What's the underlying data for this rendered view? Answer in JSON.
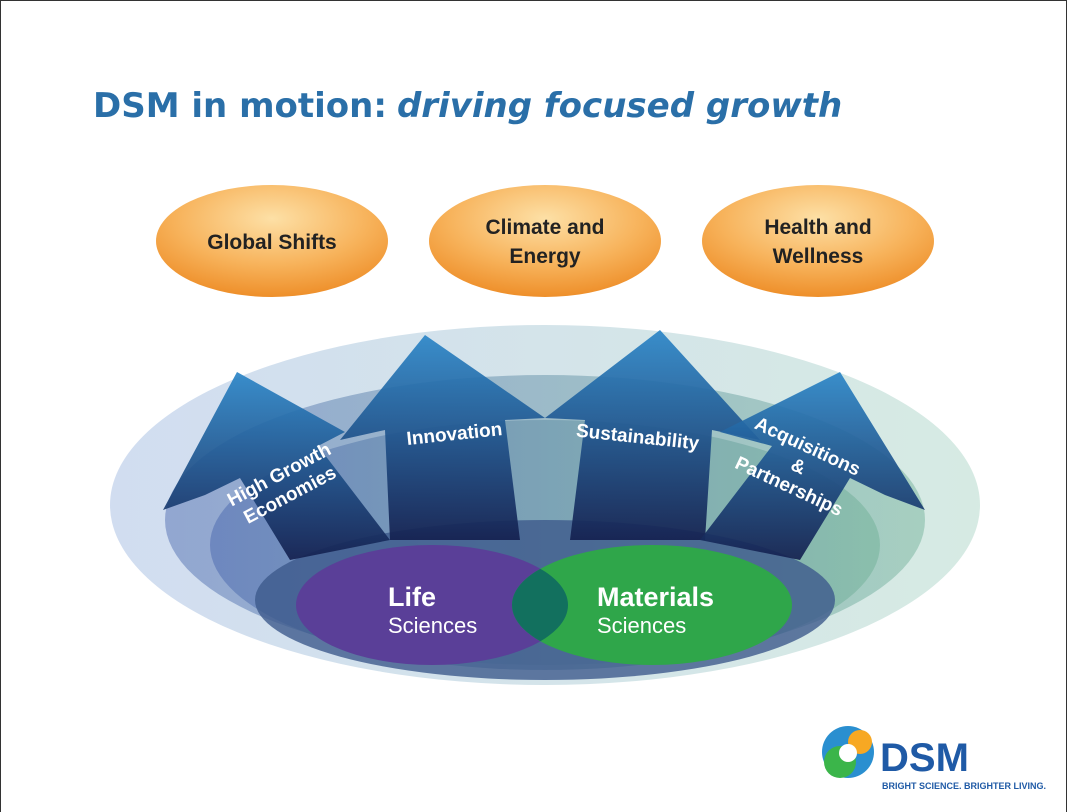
{
  "title": {
    "main": "DSM in motion:",
    "emphasis": "driving focused growth"
  },
  "drivers": [
    {
      "lines": [
        "Global Shifts"
      ]
    },
    {
      "lines": [
        "Climate and",
        "Energy"
      ]
    },
    {
      "lines": [
        "Health and",
        "Wellness"
      ]
    }
  ],
  "levers": [
    {
      "lines": [
        "High Growth",
        "Economies"
      ]
    },
    {
      "lines": [
        "Innovation"
      ]
    },
    {
      "lines": [
        "Sustainability"
      ]
    },
    {
      "lines": [
        "Acquisitions",
        "&",
        "Partnerships"
      ]
    }
  ],
  "core": [
    {
      "name": "Life",
      "sub": "Sciences"
    },
    {
      "name": "Materials",
      "sub": "Sciences"
    }
  ],
  "logo": {
    "name": "DSM",
    "tagline": "BRIGHT SCIENCE. BRIGHTER LIVING."
  }
}
